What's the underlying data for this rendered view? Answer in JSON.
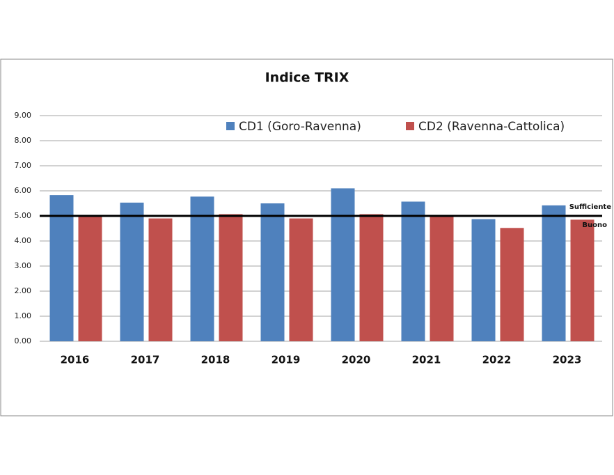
{
  "chart_data": {
    "type": "bar",
    "title": "Indice TRIX",
    "categories": [
      "2016",
      "2017",
      "2018",
      "2019",
      "2020",
      "2021",
      "2022",
      "2023"
    ],
    "series": [
      {
        "name": "CD1 (Goro-Ravenna)",
        "color": "#4f81bd",
        "values": [
          5.83,
          5.53,
          5.77,
          5.5,
          6.1,
          5.57,
          4.87,
          5.42
        ]
      },
      {
        "name": "CD2 (Ravenna-Cattolica)",
        "color": "#c0504d",
        "values": [
          5.0,
          4.9,
          5.07,
          4.9,
          5.07,
          5.0,
          4.52,
          4.85
        ]
      }
    ],
    "ylim": [
      0,
      9
    ],
    "yticks": [
      {
        "value": 0,
        "label": "0.00"
      },
      {
        "value": 1,
        "label": "1.00"
      },
      {
        "value": 2,
        "label": "2.00"
      },
      {
        "value": 3,
        "label": "3.00"
      },
      {
        "value": 4,
        "label": "4.00"
      },
      {
        "value": 5,
        "label": "5.00"
      },
      {
        "value": 6,
        "label": "6.00"
      },
      {
        "value": 7,
        "label": "7.00"
      },
      {
        "value": 8,
        "label": "8.00"
      },
      {
        "value": 9,
        "label": "9.00"
      }
    ],
    "grid": true,
    "reference_line": {
      "value": 5,
      "label_above": "Sufficiente",
      "label_below": "Buono",
      "color": "#000000"
    }
  }
}
